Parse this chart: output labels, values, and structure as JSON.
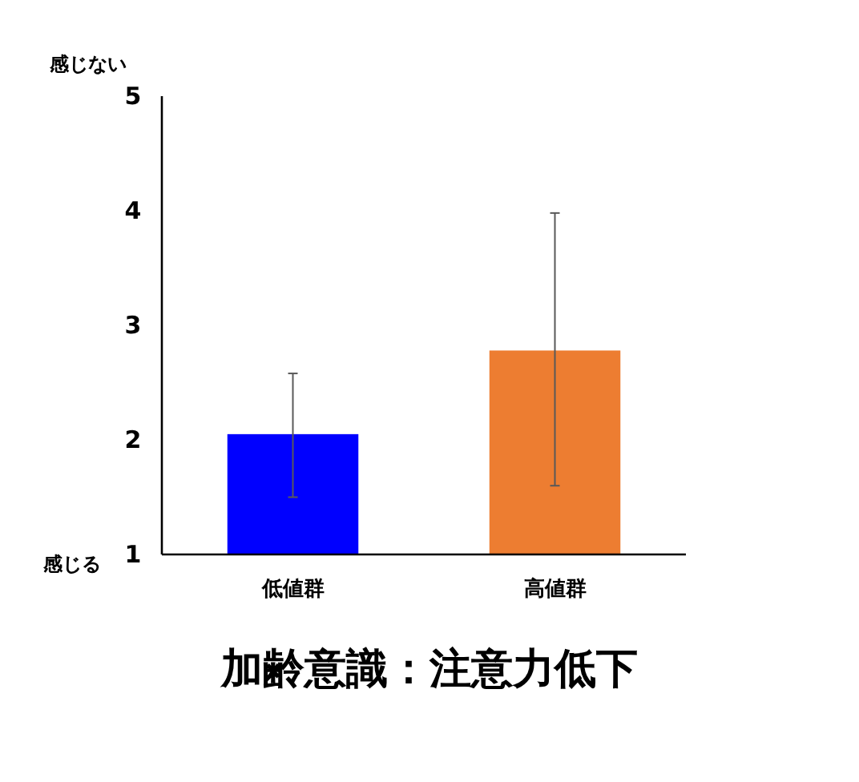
{
  "chart_data": {
    "type": "bar",
    "title": "加齢意識：注意力低下",
    "categories": [
      "低値群",
      "高値群"
    ],
    "values": [
      2.05,
      2.78
    ],
    "colors": [
      "#0000ff",
      "#ed7d31"
    ],
    "errors": [
      [
        1.5,
        2.58
      ],
      [
        1.6,
        3.98
      ]
    ],
    "ylim": [
      1,
      5
    ],
    "yticks": [
      1,
      2,
      3,
      4,
      5
    ],
    "grid": false,
    "annotations": [
      "感じない",
      "感じる"
    ]
  }
}
